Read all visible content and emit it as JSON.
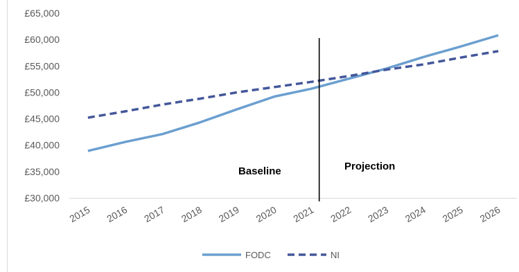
{
  "chart_data": {
    "type": "line",
    "categories": [
      "2015",
      "2016",
      "2017",
      "2018",
      "2019",
      "2020",
      "2021",
      "2022",
      "2023",
      "2024",
      "2025",
      "2026"
    ],
    "ylim": [
      30000,
      65000
    ],
    "yticks": [
      30000,
      35000,
      40000,
      45000,
      50000,
      55000,
      60000,
      65000
    ],
    "ytick_labels": [
      "£30,000",
      "£35,000",
      "£40,000",
      "£45,000",
      "£50,000",
      "£55,000",
      "£60,000",
      "£65,000"
    ],
    "series": [
      {
        "name": "FODC",
        "style": "solid",
        "color": "#6b9fd0",
        "values": [
          38900,
          40600,
          42100,
          44300,
          46800,
          49200,
          50700,
          52600,
          54500,
          56700,
          58700,
          60800
        ]
      },
      {
        "name": "NI",
        "style": "dashed",
        "color": "#44579a",
        "values": [
          45200,
          46400,
          47700,
          48800,
          50000,
          51000,
          52000,
          53100,
          54300,
          55300,
          56600,
          57800
        ]
      }
    ],
    "divider_after": "2021",
    "annotations": [
      {
        "label": "Baseline"
      },
      {
        "label": "Projection"
      }
    ],
    "legend_position": "bottom",
    "grid": false
  }
}
